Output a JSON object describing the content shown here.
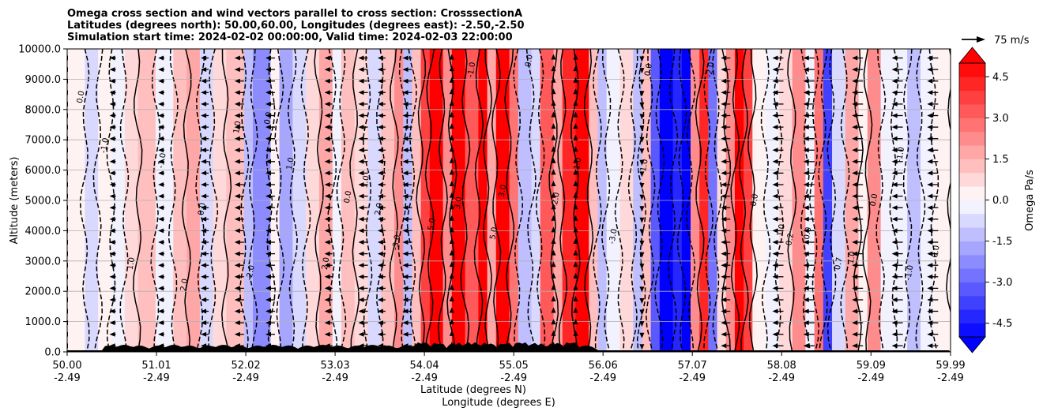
{
  "chart_data": {
    "type": "heatmap",
    "title_lines": [
      "Omega cross section and wind vectors parallel to cross section: CrosssectionA",
      "Latitudes (degrees north): 50.00,60.00, Longitudes (degrees east): -2.50,-2.50",
      "Simulation start time: 2024-02-02 00:00:00, Valid time: 2024-02-03 22:00:00"
    ],
    "ylabel": "Altitude (meters)",
    "xlabel_lines": [
      "Latitude (degrees N)",
      "Longitude (degrees E)"
    ],
    "ylim": [
      0,
      10000
    ],
    "xlim": [
      50.0,
      59.99
    ],
    "yticks": [
      "0.0",
      "1000.0",
      "2000.0",
      "3000.0",
      "4000.0",
      "5000.0",
      "6000.0",
      "7000.0",
      "8000.0",
      "9000.0",
      "10000.0"
    ],
    "xticks": [
      {
        "value": 50.0,
        "lat": "50.00",
        "lon": "-2.49"
      },
      {
        "value": 51.01,
        "lat": "51.01",
        "lon": "-2.49"
      },
      {
        "value": 52.02,
        "lat": "52.02",
        "lon": "-2.49"
      },
      {
        "value": 53.03,
        "lat": "53.03",
        "lon": "-2.49"
      },
      {
        "value": 54.04,
        "lat": "54.04",
        "lon": "-2.49"
      },
      {
        "value": 55.05,
        "lat": "55.05",
        "lon": "-2.49"
      },
      {
        "value": 56.06,
        "lat": "56.06",
        "lon": "-2.49"
      },
      {
        "value": 57.07,
        "lat": "57.07",
        "lon": "-2.49"
      },
      {
        "value": 58.08,
        "lat": "58.08",
        "lon": "-2.49"
      },
      {
        "value": 59.09,
        "lat": "59.09",
        "lon": "-2.49"
      },
      {
        "value": 59.99,
        "lat": "59.99",
        "lon": "-2.49"
      }
    ],
    "grid": true,
    "colorbar": {
      "label": "Omega Pa/s",
      "min": -5.0,
      "max": 5.0,
      "step": 0.5,
      "extend": "both",
      "ticks": [
        "-4.5",
        "-3.0",
        "-1.5",
        "0.0",
        "1.5",
        "3.0",
        "4.5"
      ],
      "tick_values": [
        -4.5,
        -3.0,
        -1.5,
        0.0,
        1.5,
        3.0,
        4.5
      ],
      "cmap": "bwr"
    },
    "quiver_key": {
      "label": "75 m/s",
      "speed": 75
    },
    "omega_bands": [
      {
        "lat": 50.0,
        "value": 0.3
      },
      {
        "lat": 50.2,
        "value": -0.8
      },
      {
        "lat": 50.35,
        "value": 0.2
      },
      {
        "lat": 50.5,
        "value": -0.5
      },
      {
        "lat": 50.65,
        "value": 0.8
      },
      {
        "lat": 50.8,
        "value": 1.2
      },
      {
        "lat": 51.0,
        "value": -0.3
      },
      {
        "lat": 51.2,
        "value": 1.0
      },
      {
        "lat": 51.35,
        "value": 1.8
      },
      {
        "lat": 51.5,
        "value": -0.6
      },
      {
        "lat": 51.65,
        "value": 0.5
      },
      {
        "lat": 51.8,
        "value": 1.2
      },
      {
        "lat": 52.0,
        "value": -1.2
      },
      {
        "lat": 52.1,
        "value": -2.4
      },
      {
        "lat": 52.3,
        "value": 0.4
      },
      {
        "lat": 52.4,
        "value": -2.0
      },
      {
        "lat": 52.55,
        "value": -1.0
      },
      {
        "lat": 52.7,
        "value": 0.8
      },
      {
        "lat": 52.85,
        "value": 1.5
      },
      {
        "lat": 53.0,
        "value": -0.5
      },
      {
        "lat": 53.1,
        "value": 1.0
      },
      {
        "lat": 53.25,
        "value": 0.6
      },
      {
        "lat": 53.4,
        "value": -1.0
      },
      {
        "lat": 53.55,
        "value": 1.2
      },
      {
        "lat": 53.7,
        "value": 2.0
      },
      {
        "lat": 53.8,
        "value": -1.4
      },
      {
        "lat": 53.9,
        "value": 1.0
      },
      {
        "lat": 54.0,
        "value": 3.5
      },
      {
        "lat": 54.1,
        "value": 5.0
      },
      {
        "lat": 54.25,
        "value": 2.0
      },
      {
        "lat": 54.35,
        "value": 5.0
      },
      {
        "lat": 54.5,
        "value": 3.0
      },
      {
        "lat": 54.65,
        "value": 5.0
      },
      {
        "lat": 54.75,
        "value": 1.5
      },
      {
        "lat": 54.85,
        "value": 5.0
      },
      {
        "lat": 55.0,
        "value": 2.5
      },
      {
        "lat": 55.1,
        "value": -1.5
      },
      {
        "lat": 55.25,
        "value": -0.6
      },
      {
        "lat": 55.35,
        "value": 3.0
      },
      {
        "lat": 55.5,
        "value": 1.5
      },
      {
        "lat": 55.6,
        "value": 4.0
      },
      {
        "lat": 55.75,
        "value": 5.0
      },
      {
        "lat": 55.9,
        "value": 1.0
      },
      {
        "lat": 56.0,
        "value": -1.5
      },
      {
        "lat": 56.1,
        "value": -0.5
      },
      {
        "lat": 56.25,
        "value": 0.6
      },
      {
        "lat": 56.4,
        "value": -1.5
      },
      {
        "lat": 56.5,
        "value": 1.0
      },
      {
        "lat": 56.6,
        "value": -3.5
      },
      {
        "lat": 56.7,
        "value": -5.0
      },
      {
        "lat": 56.85,
        "value": -4.5
      },
      {
        "lat": 56.95,
        "value": -5.0
      },
      {
        "lat": 57.05,
        "value": 2.0
      },
      {
        "lat": 57.15,
        "value": 4.0
      },
      {
        "lat": 57.25,
        "value": -3.0
      },
      {
        "lat": 57.35,
        "value": 0.6
      },
      {
        "lat": 57.45,
        "value": 2.0
      },
      {
        "lat": 57.55,
        "value": 5.0
      },
      {
        "lat": 57.65,
        "value": 3.5
      },
      {
        "lat": 57.75,
        "value": 0.3
      },
      {
        "lat": 57.9,
        "value": -0.4
      },
      {
        "lat": 58.05,
        "value": 0.8
      },
      {
        "lat": 58.2,
        "value": 2.0
      },
      {
        "lat": 58.35,
        "value": -0.5
      },
      {
        "lat": 58.45,
        "value": 2.5
      },
      {
        "lat": 58.55,
        "value": -4.0
      },
      {
        "lat": 58.65,
        "value": -0.6
      },
      {
        "lat": 58.8,
        "value": 1.5
      },
      {
        "lat": 58.95,
        "value": 0.2
      },
      {
        "lat": 59.05,
        "value": 2.0
      },
      {
        "lat": 59.2,
        "value": -0.4
      },
      {
        "lat": 59.35,
        "value": -0.3
      },
      {
        "lat": 59.5,
        "value": -1.2
      },
      {
        "lat": 59.65,
        "value": -0.2
      },
      {
        "lat": 59.8,
        "value": 0.4
      },
      {
        "lat": 59.99,
        "value": 0.2
      }
    ],
    "contour_labels": [
      {
        "text": "0.0",
        "lat": 50.18,
        "alt": 8400
      },
      {
        "text": "-1.0",
        "lat": 50.45,
        "alt": 6800
      },
      {
        "text": "1.0",
        "lat": 50.75,
        "alt": 2900
      },
      {
        "text": "-1.0",
        "lat": 51.1,
        "alt": 6300
      },
      {
        "text": "2.0",
        "lat": 51.35,
        "alt": 2200
      },
      {
        "text": "0.0",
        "lat": 51.55,
        "alt": 4700
      },
      {
        "text": "1.0",
        "lat": 51.95,
        "alt": 7400
      },
      {
        "text": "-2.0",
        "lat": 52.1,
        "alt": 2600
      },
      {
        "text": "0.0",
        "lat": 52.3,
        "alt": 7700
      },
      {
        "text": "1.0",
        "lat": 52.55,
        "alt": 6200
      },
      {
        "text": "2.0",
        "lat": 52.95,
        "alt": 2900
      },
      {
        "text": "0.0",
        "lat": 53.2,
        "alt": 5100
      },
      {
        "text": "1.0",
        "lat": 53.4,
        "alt": 5600
      },
      {
        "text": "2.0",
        "lat": 53.55,
        "alt": 4700
      },
      {
        "text": "-3.0",
        "lat": 53.75,
        "alt": 3600
      },
      {
        "text": "5.0",
        "lat": 54.15,
        "alt": 4200
      },
      {
        "text": "3.0",
        "lat": 54.45,
        "alt": 4900
      },
      {
        "text": "-1.0",
        "lat": 54.6,
        "alt": 9300
      },
      {
        "text": "3.0",
        "lat": 54.95,
        "alt": 5300
      },
      {
        "text": "5.0",
        "lat": 54.85,
        "alt": 3900
      },
      {
        "text": "0.0",
        "lat": 55.25,
        "alt": 9600
      },
      {
        "text": "-2.0",
        "lat": 55.55,
        "alt": 5000
      },
      {
        "text": "1.0",
        "lat": 55.8,
        "alt": 6200
      },
      {
        "text": "-3.0",
        "lat": 56.2,
        "alt": 3800
      },
      {
        "text": "-1.0",
        "lat": 56.55,
        "alt": 6100
      },
      {
        "text": "0.0",
        "lat": 56.6,
        "alt": 9300
      },
      {
        "text": "-2.0",
        "lat": 57.3,
        "alt": 9300
      },
      {
        "text": "0.0",
        "lat": 57.8,
        "alt": 5000
      },
      {
        "text": "1.0",
        "lat": 58.1,
        "alt": 4000
      },
      {
        "text": "0.2",
        "lat": 58.2,
        "alt": 3700
      },
      {
        "text": "0.0",
        "lat": 58.4,
        "alt": 3900
      },
      {
        "text": "0.7",
        "lat": 58.75,
        "alt": 2900
      },
      {
        "text": "1.0",
        "lat": 58.9,
        "alt": 3100
      },
      {
        "text": "0.0",
        "lat": 59.15,
        "alt": 5000
      },
      {
        "text": "-1.0",
        "lat": 59.45,
        "alt": 6500
      },
      {
        "text": "-1.0",
        "lat": 59.55,
        "alt": 2600
      },
      {
        "text": "0.0",
        "lat": 59.85,
        "alt": 3300
      }
    ],
    "wind_columns": [
      {
        "lat": 50.0,
        "direction": "left",
        "speed": 10
      },
      {
        "lat": 50.55,
        "direction": "left",
        "speed": 15
      },
      {
        "lat": 51.1,
        "direction": "left",
        "speed": 15
      },
      {
        "lat": 51.6,
        "direction": "left",
        "speed": 20
      },
      {
        "lat": 52.0,
        "direction": "left",
        "speed": 25
      },
      {
        "lat": 52.35,
        "direction": "left",
        "speed": 25
      },
      {
        "lat": 53.0,
        "direction": "left",
        "speed": 20
      },
      {
        "lat": 53.4,
        "direction": "left",
        "speed": 25
      },
      {
        "lat": 53.6,
        "direction": "left",
        "speed": 20
      },
      {
        "lat": 53.9,
        "direction": "left",
        "speed": 25
      },
      {
        "lat": 54.35,
        "direction": "up",
        "speed": 15
      },
      {
        "lat": 55.5,
        "direction": "up",
        "speed": 15
      },
      {
        "lat": 55.75,
        "direction": "up",
        "speed": 15
      },
      {
        "lat": 56.5,
        "direction": "down",
        "speed": 15
      },
      {
        "lat": 57.5,
        "direction": "left",
        "speed": 25
      },
      {
        "lat": 58.1,
        "direction": "left",
        "speed": 30
      },
      {
        "lat": 58.45,
        "direction": "left",
        "speed": 30
      },
      {
        "lat": 59.0,
        "direction": "left",
        "speed": 30
      },
      {
        "lat": 59.45,
        "direction": "left",
        "speed": 30
      },
      {
        "lat": 59.85,
        "direction": "left",
        "speed": 30
      }
    ]
  }
}
